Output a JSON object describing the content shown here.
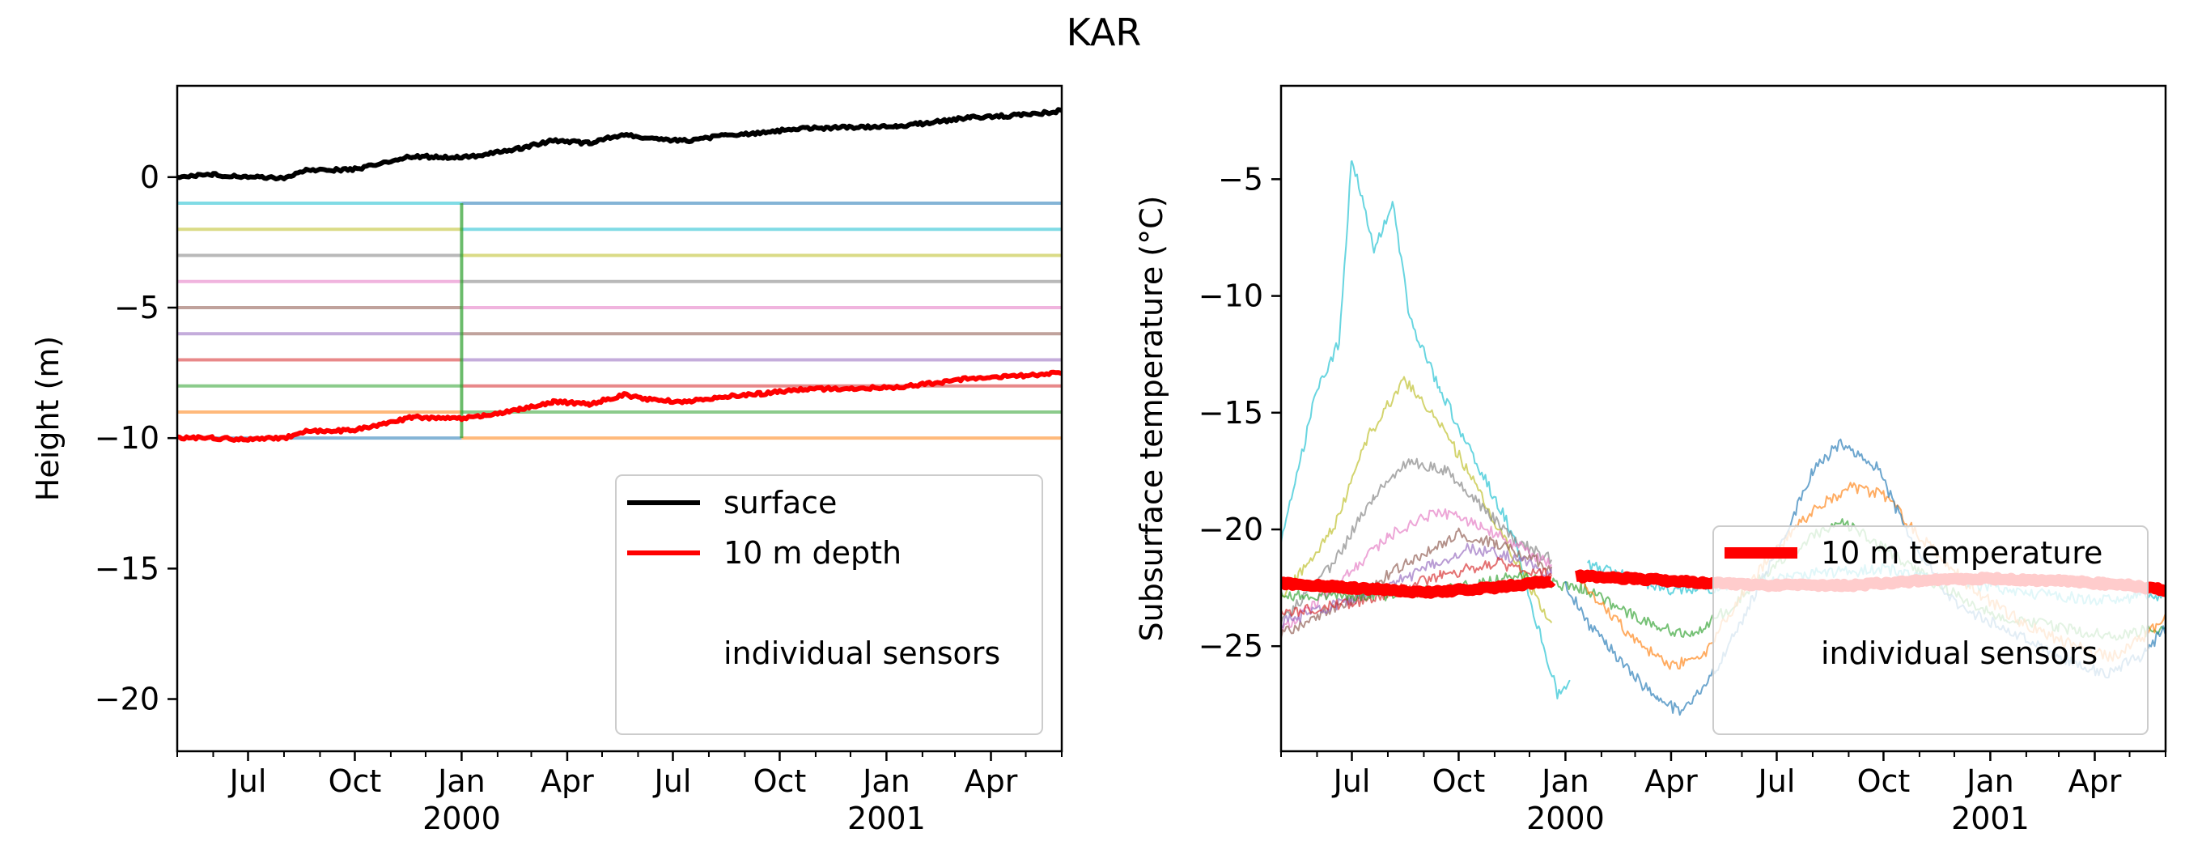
{
  "title": "KAR",
  "colors": {
    "surface": "#000000",
    "depth10": "#ff0000",
    "sensors": [
      "#17becf",
      "#bcbd22",
      "#7f7f7f",
      "#e377c2",
      "#8c564b",
      "#9467bd",
      "#d62728",
      "#2ca02c",
      "#ff7f0e",
      "#1f77b4"
    ]
  },
  "chart_data": [
    {
      "type": "line",
      "title": "",
      "xlabel": "",
      "ylabel": "Height (m)",
      "xlim": [
        "1999-05-01",
        "2001-06-01"
      ],
      "ylim": [
        -22,
        3.5
      ],
      "yticks": [
        0,
        -5,
        -10,
        -15,
        -20
      ],
      "ytick_labels": [
        "0",
        "−5",
        "−10",
        "−15",
        "−20"
      ],
      "xticks": [
        {
          "date": "1999-07-01",
          "label": "Jul",
          "year": ""
        },
        {
          "date": "1999-10-01",
          "label": "Oct",
          "year": ""
        },
        {
          "date": "2000-01-01",
          "label": "Jan",
          "year": "2000"
        },
        {
          "date": "2000-04-01",
          "label": "Apr",
          "year": ""
        },
        {
          "date": "2000-07-01",
          "label": "Jul",
          "year": ""
        },
        {
          "date": "2000-10-01",
          "label": "Oct",
          "year": ""
        },
        {
          "date": "2001-01-01",
          "label": "Jan",
          "year": "2001"
        },
        {
          "date": "2001-04-01",
          "label": "Apr",
          "year": ""
        }
      ],
      "grid": false,
      "legend": {
        "placement": "lower-right",
        "entries": [
          "surface",
          "10 m depth",
          "",
          "individual sensors"
        ]
      },
      "series": [
        {
          "name": "surface",
          "color": "#000000",
          "points": [
            [
              "1999-05-01",
              0.0
            ],
            [
              "1999-06-01",
              0.1
            ],
            [
              "1999-07-01",
              0.0
            ],
            [
              "1999-08-01",
              -0.05
            ],
            [
              "1999-08-20",
              0.25
            ],
            [
              "1999-10-01",
              0.3
            ],
            [
              "1999-10-20",
              0.5
            ],
            [
              "1999-11-20",
              0.8
            ],
            [
              "2000-01-01",
              0.75
            ],
            [
              "2000-01-20",
              0.85
            ],
            [
              "2000-02-20",
              1.1
            ],
            [
              "2000-03-20",
              1.4
            ],
            [
              "2000-04-20",
              1.3
            ],
            [
              "2000-05-20",
              1.65
            ],
            [
              "2000-06-15",
              1.45
            ],
            [
              "2000-07-15",
              1.4
            ],
            [
              "2000-08-15",
              1.6
            ],
            [
              "2000-09-15",
              1.7
            ],
            [
              "2000-10-15",
              1.85
            ],
            [
              "2000-11-20",
              1.9
            ],
            [
              "2001-01-10",
              1.95
            ],
            [
              "2001-02-10",
              2.1
            ],
            [
              "2001-03-15",
              2.3
            ],
            [
              "2001-04-15",
              2.35
            ],
            [
              "2001-05-15",
              2.45
            ],
            [
              "2001-06-01",
              2.55
            ]
          ]
        },
        {
          "name": "10 m depth",
          "color": "#ff0000",
          "points": [
            [
              "1999-05-01",
              -10.0
            ],
            [
              "1999-06-01",
              -10.0
            ],
            [
              "1999-07-01",
              -10.05
            ],
            [
              "1999-08-01",
              -10.0
            ],
            [
              "1999-08-20",
              -9.75
            ],
            [
              "1999-10-01",
              -9.7
            ],
            [
              "1999-10-20",
              -9.5
            ],
            [
              "1999-11-20",
              -9.2
            ],
            [
              "2000-01-01",
              -9.25
            ],
            [
              "2000-01-20",
              -9.15
            ],
            [
              "2000-02-20",
              -8.9
            ],
            [
              "2000-03-20",
              -8.6
            ],
            [
              "2000-04-20",
              -8.7
            ],
            [
              "2000-05-20",
              -8.35
            ],
            [
              "2000-06-15",
              -8.55
            ],
            [
              "2000-07-15",
              -8.6
            ],
            [
              "2000-08-15",
              -8.4
            ],
            [
              "2000-09-15",
              -8.3
            ],
            [
              "2000-10-15",
              -8.15
            ],
            [
              "2000-11-20",
              -8.1
            ],
            [
              "2001-01-10",
              -8.05
            ],
            [
              "2001-02-10",
              -7.9
            ],
            [
              "2001-03-15",
              -7.7
            ],
            [
              "2001-04-15",
              -7.65
            ],
            [
              "2001-05-15",
              -7.55
            ],
            [
              "2001-06-01",
              -7.45
            ]
          ]
        },
        {
          "name": "",
          "segments": [
            {
              "from": "1999-05-01",
              "to": "2000-01-01",
              "depths": [
                -1,
                -2,
                -3,
                -4,
                -5,
                -6,
                -7,
                -8,
                -9,
                -10
              ]
            },
            {
              "from": "2000-01-01",
              "to": "2001-06-01",
              "depths": [
                -1,
                -2,
                -3,
                -4,
                -5,
                -6,
                -7,
                -8,
                -9,
                -10
              ]
            }
          ],
          "transition": {
            "date": "2000-01-01",
            "from": -1,
            "to": -10
          }
        }
      ]
    },
    {
      "type": "line",
      "title": "",
      "xlabel": "",
      "ylabel": "Subsurface temperature (°C)",
      "xlim": [
        "1999-05-01",
        "2001-06-01"
      ],
      "ylim": [
        -29.5,
        -1
      ],
      "yticks": [
        -5,
        -10,
        -15,
        -20,
        -25
      ],
      "ytick_labels": [
        "−5",
        "−10",
        "−15",
        "−20",
        "−25"
      ],
      "xticks": [
        {
          "date": "1999-07-01",
          "label": "Jul",
          "year": ""
        },
        {
          "date": "1999-10-01",
          "label": "Oct",
          "year": ""
        },
        {
          "date": "2000-01-01",
          "label": "Jan",
          "year": "2000"
        },
        {
          "date": "2000-04-01",
          "label": "Apr",
          "year": ""
        },
        {
          "date": "2000-07-01",
          "label": "Jul",
          "year": ""
        },
        {
          "date": "2000-10-01",
          "label": "Oct",
          "year": ""
        },
        {
          "date": "2001-01-01",
          "label": "Jan",
          "year": "2001"
        },
        {
          "date": "2001-04-01",
          "label": "Apr",
          "year": ""
        }
      ],
      "grid": false,
      "legend": {
        "placement": "lower-right",
        "entries": [
          "10 m temperature",
          "",
          "individual sensors"
        ]
      },
      "series": [
        {
          "name": "10 m temperature",
          "color": "#ff0000",
          "points": [
            [
              "1999-05-01",
              -22.3
            ],
            [
              "1999-07-01",
              -22.5
            ],
            [
              "1999-09-01",
              -22.7
            ],
            [
              "1999-11-01",
              -22.5
            ],
            [
              "1999-12-20",
              -22.2
            ],
            [
              "2000-01-10",
              -22.0
            ],
            [
              "2000-03-01",
              -22.1
            ],
            [
              "2000-05-01",
              -22.3
            ],
            [
              "2000-07-01",
              -22.4
            ],
            [
              "2000-09-01",
              -22.4
            ],
            [
              "2000-11-01",
              -22.2
            ],
            [
              "2001-01-01",
              -22.1
            ],
            [
              "2001-03-01",
              -22.2
            ],
            [
              "2001-05-01",
              -22.4
            ],
            [
              "2001-06-01",
              -22.6
            ]
          ]
        },
        {
          "name": "",
          "color": "#17becf",
          "points": [
            [
              "1999-05-01",
              -20.5
            ],
            [
              "1999-06-01",
              -14
            ],
            [
              "1999-06-20",
              -12
            ],
            [
              "1999-07-01",
              -4
            ],
            [
              "1999-07-20",
              -8
            ],
            [
              "1999-08-05",
              -6
            ],
            [
              "1999-08-20",
              -11
            ],
            [
              "1999-09-15",
              -14
            ],
            [
              "1999-10-15",
              -17
            ],
            [
              "1999-11-15",
              -20
            ],
            [
              "1999-12-10",
              -24.5
            ],
            [
              "1999-12-25",
              -27
            ],
            [
              "2000-01-05",
              -26.5
            ]
          ]
        },
        {
          "name": "",
          "color": "#bcbd22",
          "points": [
            [
              "1999-05-01",
              -23
            ],
            [
              "1999-06-15",
              -20
            ],
            [
              "1999-07-15",
              -16
            ],
            [
              "1999-08-15",
              -13.6
            ],
            [
              "1999-09-15",
              -15.5
            ],
            [
              "1999-10-15",
              -18
            ],
            [
              "1999-11-15",
              -21
            ],
            [
              "1999-12-20",
              -24
            ]
          ]
        },
        {
          "name": "",
          "color": "#7f7f7f",
          "points": [
            [
              "1999-05-01",
              -24
            ],
            [
              "1999-06-15",
              -21.5
            ],
            [
              "1999-07-20",
              -18.5
            ],
            [
              "1999-08-20",
              -17.1
            ],
            [
              "1999-09-20",
              -17.5
            ],
            [
              "1999-10-20",
              -19
            ],
            [
              "1999-11-20",
              -20.5
            ],
            [
              "1999-12-20",
              -21.3
            ]
          ]
        },
        {
          "name": "",
          "color": "#e377c2",
          "points": [
            [
              "1999-05-01",
              -24.3
            ],
            [
              "1999-06-15",
              -22.5
            ],
            [
              "1999-08-01",
              -20.3
            ],
            [
              "1999-09-15",
              -19.2
            ],
            [
              "1999-10-20",
              -19.8
            ],
            [
              "1999-11-20",
              -20.7
            ],
            [
              "1999-12-20",
              -21.5
            ]
          ]
        },
        {
          "name": "",
          "color": "#8c564b",
          "points": [
            [
              "1999-05-01",
              -24.5
            ],
            [
              "1999-07-01",
              -23
            ],
            [
              "1999-08-15",
              -21.5
            ],
            [
              "1999-10-01",
              -20.2
            ],
            [
              "1999-11-01",
              -20.6
            ],
            [
              "1999-12-20",
              -21.6
            ]
          ]
        },
        {
          "name": "",
          "color": "#9467bd",
          "points": [
            [
              "1999-05-01",
              -24
            ],
            [
              "1999-07-01",
              -23
            ],
            [
              "1999-08-20",
              -22
            ],
            [
              "1999-10-10",
              -20.8
            ],
            [
              "1999-11-15",
              -21.2
            ],
            [
              "1999-12-20",
              -21.9
            ]
          ]
        },
        {
          "name": "",
          "color": "#d62728",
          "points": [
            [
              "1999-05-01",
              -23.6
            ],
            [
              "1999-07-15",
              -23
            ],
            [
              "1999-09-15",
              -22
            ],
            [
              "1999-11-01",
              -21.4
            ],
            [
              "1999-12-20",
              -22
            ]
          ]
        },
        {
          "name": "",
          "color": "#2ca02c",
          "points": [
            [
              "1999-05-01",
              -22.8
            ],
            [
              "1999-08-01",
              -22.8
            ],
            [
              "1999-10-01",
              -22.5
            ],
            [
              "1999-11-15",
              -22
            ],
            [
              "1999-12-20",
              -22.3
            ],
            [
              "2000-01-15",
              -22.5
            ],
            [
              "2000-02-20",
              -23.5
            ],
            [
              "2000-03-20",
              -24.2
            ],
            [
              "2000-04-20",
              -24.5
            ],
            [
              "2000-05-20",
              -23.4
            ],
            [
              "2000-07-01",
              -21.5
            ],
            [
              "2000-08-01",
              -20.3
            ],
            [
              "2000-08-25",
              -19.6
            ],
            [
              "2000-10-01",
              -20.8
            ],
            [
              "2000-11-15",
              -22.3
            ],
            [
              "2001-01-01",
              -23.6
            ],
            [
              "2001-03-01",
              -24.2
            ],
            [
              "2001-04-15",
              -24.6
            ],
            [
              "2001-06-01",
              -24.2
            ]
          ]
        },
        {
          "name": "",
          "color": "#ff7f0e",
          "points": [
            [
              "2000-01-15",
              -22.2
            ],
            [
              "2000-02-01",
              -23.2
            ],
            [
              "2000-03-01",
              -24.8
            ],
            [
              "2000-04-01",
              -25.9
            ],
            [
              "2000-05-01",
              -25.2
            ],
            [
              "2000-06-01",
              -22.8
            ],
            [
              "2000-07-01",
              -20.8
            ],
            [
              "2000-08-01",
              -19.2
            ],
            [
              "2000-09-01",
              -18.2
            ],
            [
              "2000-10-01",
              -18.5
            ],
            [
              "2000-11-01",
              -20.3
            ],
            [
              "2000-12-15",
              -22.5
            ],
            [
              "2001-02-01",
              -24.1
            ],
            [
              "2001-03-15",
              -25
            ],
            [
              "2001-04-15",
              -25.5
            ],
            [
              "2001-05-15",
              -24.5
            ],
            [
              "2001-06-01",
              -23.8
            ]
          ]
        },
        {
          "name": "",
          "color": "#1f77b4",
          "points": [
            [
              "2000-01-01",
              -22.3
            ],
            [
              "2000-01-20",
              -24
            ],
            [
              "2000-02-05",
              -24.8
            ],
            [
              "2000-02-20",
              -25.8
            ],
            [
              "2000-03-20",
              -27.3
            ],
            [
              "2000-04-10",
              -27.8
            ],
            [
              "2000-05-10",
              -26
            ],
            [
              "2000-06-10",
              -23
            ],
            [
              "2000-07-10",
              -20
            ],
            [
              "2000-08-01",
              -17.5
            ],
            [
              "2000-08-25",
              -16.3
            ],
            [
              "2000-09-25",
              -17.3
            ],
            [
              "2000-10-25",
              -20.5
            ],
            [
              "2000-12-01",
              -23.2
            ],
            [
              "2001-01-15",
              -24.3
            ],
            [
              "2001-03-01",
              -25.5
            ],
            [
              "2001-04-10",
              -26.2
            ],
            [
              "2001-05-15",
              -25.3
            ],
            [
              "2001-06-01",
              -24.2
            ]
          ]
        },
        {
          "name": "",
          "color": "#17becf",
          "points": [
            [
              "2000-01-20",
              -21.5
            ],
            [
              "2000-02-20",
              -22
            ],
            [
              "2000-04-01",
              -22.6
            ],
            [
              "2000-06-01",
              -22.4
            ],
            [
              "2000-08-01",
              -21.9
            ],
            [
              "2000-10-01",
              -21.7
            ],
            [
              "2000-12-01",
              -22.2
            ],
            [
              "2001-02-01",
              -22.7
            ],
            [
              "2001-04-01",
              -23
            ],
            [
              "2001-06-01",
              -22.8
            ]
          ]
        }
      ]
    }
  ]
}
